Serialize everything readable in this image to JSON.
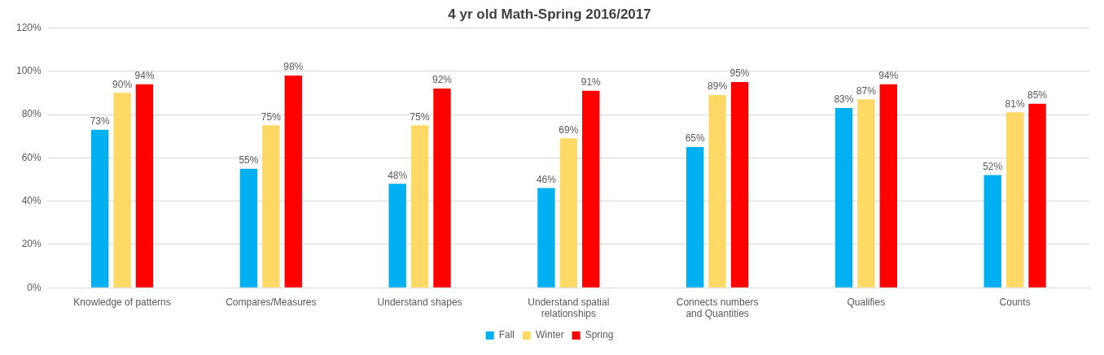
{
  "chart_data": {
    "type": "bar",
    "title": "4 yr old Math-Spring 2016/2017",
    "categories": [
      "Knowledge of patterns",
      "Compares/Measures",
      "Understand shapes",
      "Understand spatial relationships",
      "Connects numbers and Quantities",
      "Qualifies",
      "Counts"
    ],
    "series": [
      {
        "name": "Fall",
        "color": "#00b0f0",
        "values": [
          73,
          55,
          48,
          46,
          65,
          83,
          52
        ],
        "value_labels": [
          "73%",
          "55%",
          "48%",
          "46%",
          "65%",
          "83%",
          "52%"
        ]
      },
      {
        "name": "Winter",
        "color": "#ffd966",
        "values": [
          90,
          75,
          75,
          69,
          89,
          87,
          81
        ],
        "value_labels": [
          "90%",
          "75%",
          "75%",
          "69%",
          "89%",
          "87%",
          "81%"
        ]
      },
      {
        "name": "Spring",
        "color": "#ff0000",
        "values": [
          94,
          98,
          92,
          91,
          95,
          94,
          85
        ],
        "value_labels": [
          "94%",
          "98%",
          "92%",
          "91%",
          "95%",
          "94%",
          "85%"
        ]
      }
    ],
    "ylim": [
      0,
      120
    ],
    "yticks": [
      {
        "value": 0,
        "label": "0%"
      },
      {
        "value": 20,
        "label": "20%"
      },
      {
        "value": 40,
        "label": "40%"
      },
      {
        "value": 60,
        "label": "60%"
      },
      {
        "value": 80,
        "label": "80%"
      },
      {
        "value": 100,
        "label": "100%"
      },
      {
        "value": 120,
        "label": "120%"
      }
    ],
    "grid": "y",
    "legend": "bottom"
  }
}
